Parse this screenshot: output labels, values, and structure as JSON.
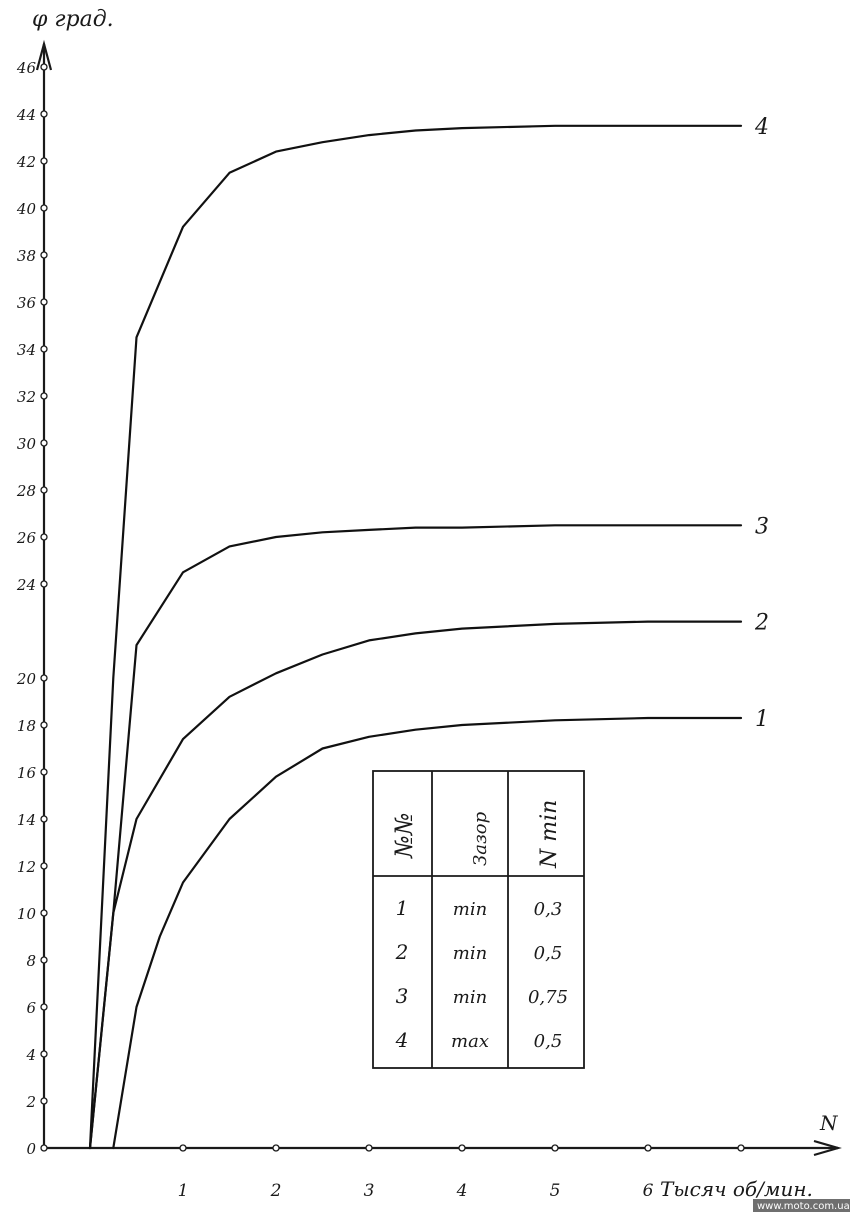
{
  "chart_data": {
    "type": "line",
    "ylabel": "φ град.",
    "xlabel": "N",
    "xunit_label": "Тысяч об/мин.",
    "xlim": [
      0,
      7.5
    ],
    "ylim": [
      0,
      47
    ],
    "x_ticks": [
      1,
      2,
      3,
      4,
      5,
      6
    ],
    "x_tick_labels": [
      "1",
      "2",
      "3",
      "4",
      "5",
      "6"
    ],
    "y_ticks": [
      0,
      2,
      4,
      6,
      8,
      10,
      12,
      14,
      16,
      18,
      20,
      24,
      26,
      28,
      30,
      32,
      34,
      36,
      38,
      40,
      42,
      44,
      46
    ],
    "y_tick_labels": [
      "0",
      "2",
      "4",
      "6",
      "8",
      "10",
      "12",
      "14",
      "16",
      "18",
      "20",
      "24",
      "26",
      "28",
      "30",
      "32",
      "34",
      "36",
      "38",
      "40",
      "42",
      "44",
      "46"
    ],
    "grid": false,
    "series": [
      {
        "name": "1",
        "x": [
          0.25,
          0.5,
          0.75,
          1.0,
          1.5,
          2.0,
          2.5,
          3.0,
          3.5,
          4.0,
          5.0,
          6.0,
          7.0
        ],
        "values": [
          0,
          6,
          9,
          11.3,
          14,
          15.8,
          17,
          17.5,
          17.8,
          18,
          18.2,
          18.3,
          18.3
        ]
      },
      {
        "name": "2",
        "x": [
          0,
          0.25,
          0.5,
          1.0,
          1.5,
          2.0,
          2.5,
          3.0,
          3.5,
          4.0,
          5.0,
          6.0,
          7.0
        ],
        "values": [
          0,
          10,
          14,
          17.4,
          19.2,
          20.2,
          21,
          21.6,
          21.9,
          22.1,
          22.3,
          22.4,
          22.4
        ]
      },
      {
        "name": "3",
        "x": [
          0,
          0.25,
          0.5,
          1.0,
          1.5,
          2.0,
          2.5,
          3.0,
          3.5,
          4.0,
          5.0,
          6.0,
          7.0
        ],
        "values": [
          0,
          10,
          21.4,
          24.5,
          25.6,
          26,
          26.2,
          26.3,
          26.4,
          26.4,
          26.5,
          26.5,
          26.5
        ]
      },
      {
        "name": "4",
        "x": [
          0,
          0.25,
          0.5,
          1.0,
          1.5,
          2.0,
          2.5,
          3.0,
          3.5,
          4.0,
          5.0,
          6.0,
          7.0
        ],
        "values": [
          0,
          20,
          34.5,
          39.2,
          41.5,
          42.4,
          42.8,
          43.1,
          43.3,
          43.4,
          43.5,
          43.5,
          43.5
        ]
      }
    ],
    "legend": {
      "placement": "lower-center",
      "headers": [
        "№№",
        "Зазор",
        "N min"
      ],
      "rows": [
        [
          "1",
          "min",
          "0,3"
        ],
        [
          "2",
          "min",
          "0,5"
        ],
        [
          "3",
          "min",
          "0,75"
        ],
        [
          "4",
          "max",
          "0,5"
        ]
      ]
    }
  },
  "watermark": "www.moto.com.ua",
  "colors": {
    "ink": "#111111",
    "paper": "#ffffff"
  }
}
